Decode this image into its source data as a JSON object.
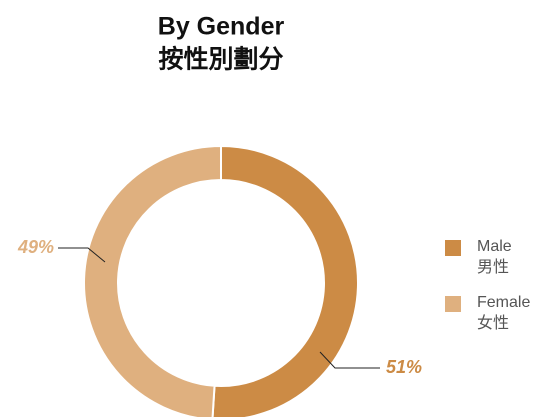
{
  "chart_data": {
    "type": "donut",
    "title": "By Gender",
    "subtitle": "按性別劃分",
    "categories": [
      "Male",
      "Female"
    ],
    "categories_zh": [
      "男性",
      "女性"
    ],
    "values": [
      51,
      49
    ],
    "value_labels": [
      "51%",
      "49%"
    ],
    "colors": [
      "#cc8b45",
      "#dfb07f"
    ],
    "legend": "right"
  }
}
